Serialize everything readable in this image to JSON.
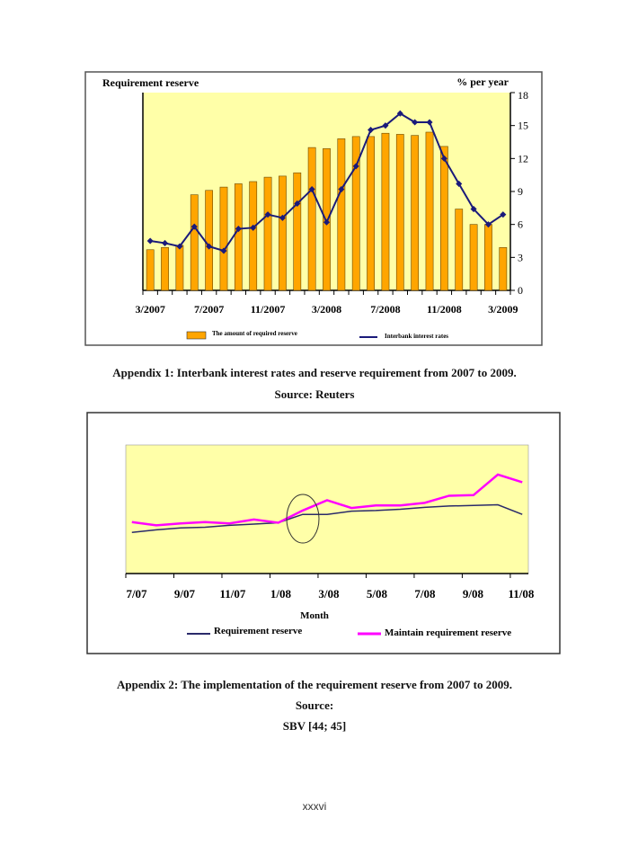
{
  "chart_data": [
    {
      "type": "bar+line",
      "title_left": "Requirement reserve",
      "title_right": "% per year",
      "x_tick_labels": [
        "3/2007",
        "7/2007",
        "11/2007",
        "3/2008",
        "7/2008",
        "11/2008",
        "3/2009"
      ],
      "categories": [
        "3/2007",
        "4/2007",
        "5/2007",
        "6/2007",
        "7/2007",
        "8/2007",
        "9/2007",
        "10/2007",
        "11/2007",
        "12/2007",
        "1/2008",
        "2/2008",
        "3/2008",
        "4/2008",
        "5/2008",
        "6/2008",
        "7/2008",
        "8/2008",
        "9/2008",
        "10/2008",
        "11/2008",
        "12/2008",
        "1/2009",
        "2/2009",
        "3/2009"
      ],
      "y_ticks": [
        0,
        3,
        6,
        9,
        12,
        15,
        18
      ],
      "ylim": [
        0,
        18
      ],
      "series": [
        {
          "name": "The amount of required reserve",
          "type": "bar",
          "color": "#FFA500",
          "values": [
            3.7,
            3.9,
            4.1,
            8.7,
            9.1,
            9.4,
            9.7,
            9.9,
            10.3,
            10.4,
            10.7,
            13.0,
            12.9,
            13.8,
            14.0,
            14.0,
            14.3,
            14.2,
            14.1,
            14.4,
            13.1,
            7.4,
            6.0,
            6.0,
            3.9
          ]
        },
        {
          "name": "Interbank interest rates",
          "type": "line",
          "color": "#1a1a7a",
          "values": [
            4.5,
            4.3,
            4.0,
            5.8,
            4.0,
            3.6,
            5.6,
            5.7,
            6.9,
            6.6,
            7.9,
            9.2,
            6.2,
            9.2,
            11.3,
            14.6,
            15.0,
            16.1,
            15.3,
            15.3,
            12.0,
            9.7,
            7.4,
            6.0,
            6.9
          ]
        }
      ],
      "background": "#FFFFA8",
      "legend": "bottom"
    },
    {
      "type": "line",
      "xlabel": "Month",
      "x_tick_labels": [
        "7/07",
        "9/07",
        "11/07",
        "1/08",
        "3/08",
        "5/08",
        "7/08",
        "9/08",
        "11/08"
      ],
      "categories": [
        "7/07",
        "8/07",
        "9/07",
        "10/07",
        "11/07",
        "12/07",
        "1/08",
        "2/08",
        "3/08",
        "4/08",
        "5/08",
        "6/08",
        "7/08",
        "8/08",
        "9/08",
        "10/08",
        "11/08"
      ],
      "ylim": [
        0,
        100
      ],
      "series": [
        {
          "name": "Requirement reserve",
          "color": "#2a2a6a",
          "values": [
            32,
            34,
            35.5,
            36,
            37.5,
            38.5,
            39.5,
            46,
            46,
            48.5,
            49,
            50,
            51.5,
            52.5,
            53,
            53.5,
            46
          ]
        },
        {
          "name": "Maintain requirement reserve",
          "color": "#FF00FF",
          "values": [
            40,
            37.5,
            39,
            40,
            39,
            42,
            39.5,
            49,
            57,
            51,
            53,
            53,
            55,
            60.5,
            61,
            77,
            71
          ]
        }
      ],
      "annotation": "ellipse around 2/08",
      "background": "#FFFFA8",
      "legend": "bottom"
    }
  ],
  "captions": {
    "appendix1": "Appendix  1:  Interbank  interest rates and  reserve requirement  from  2007 to 2009.",
    "source1": "Source:  Reuters",
    "appendix2": "Appendix  2:  The  implementation   of the requirement  reserve from  2007 to 2009.",
    "source2": "Source:",
    "source2b": "SBV [44; 45]"
  },
  "page_number": "xxxvi"
}
